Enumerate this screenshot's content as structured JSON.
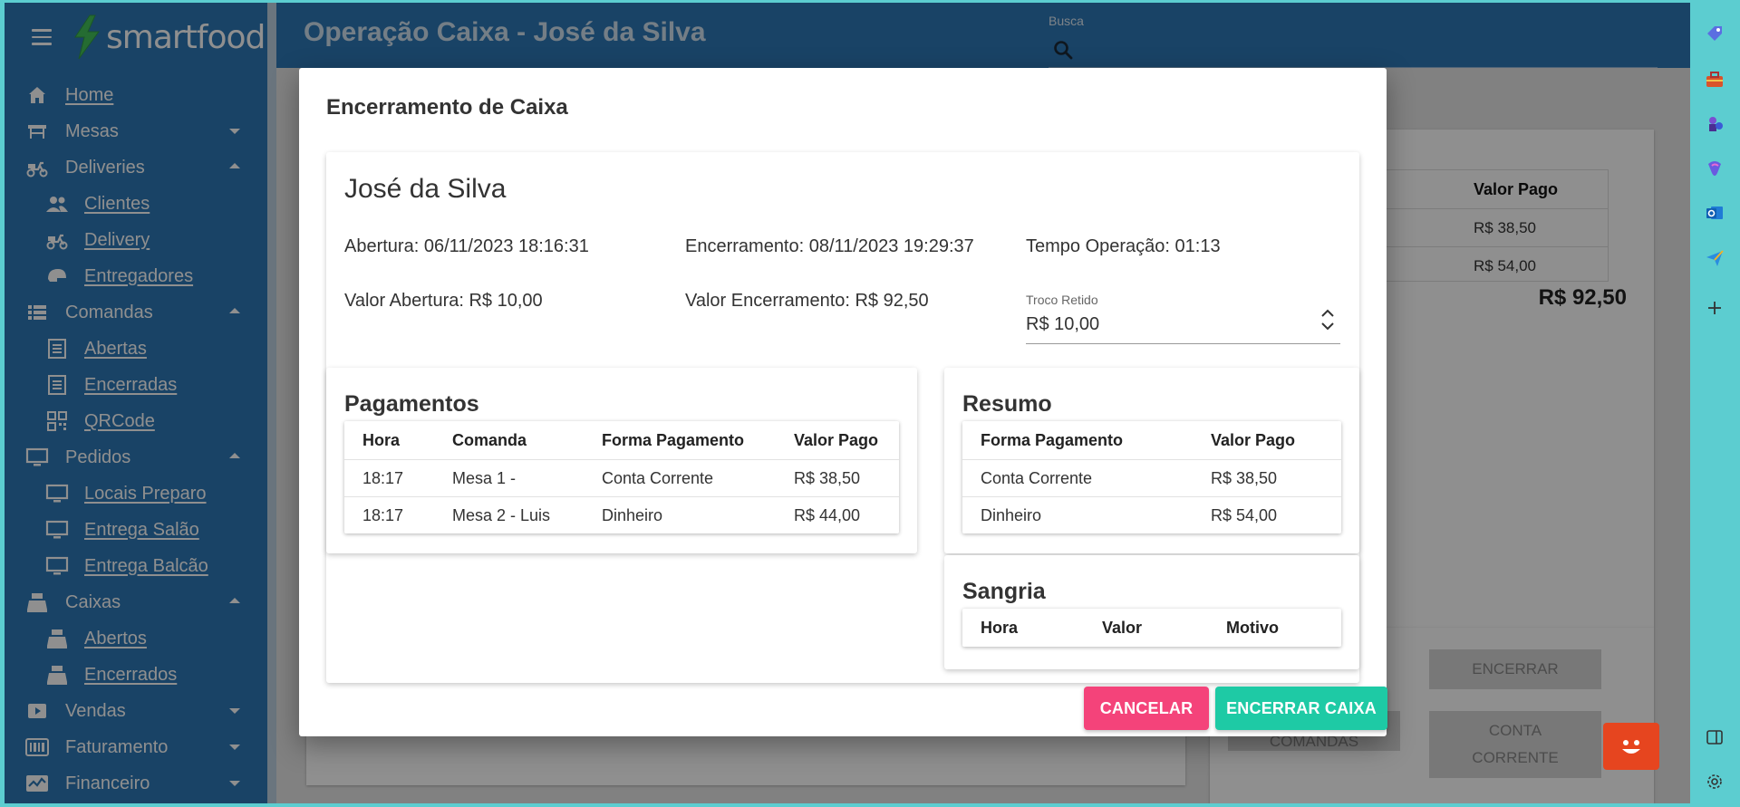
{
  "app": {
    "logo_text": "smartfood",
    "page_title": "Operação Caixa - José da Silva",
    "search_label": "Busca"
  },
  "sidebar": {
    "items": [
      {
        "label": "Home",
        "icon": "home-icon",
        "level": 0,
        "link": true
      },
      {
        "label": "Mesas",
        "icon": "table-icon",
        "level": 0,
        "caret": "down"
      },
      {
        "label": "Deliveries",
        "icon": "scooter-icon",
        "level": 0,
        "caret": "up"
      },
      {
        "label": "Clientes",
        "icon": "people-icon",
        "level": 1,
        "link": true
      },
      {
        "label": "Delivery",
        "icon": "scooter-icon",
        "level": 1,
        "link": true
      },
      {
        "label": "Entregadores",
        "icon": "helmet-icon",
        "level": 1,
        "link": true
      },
      {
        "label": "Comandas",
        "icon": "list-icon",
        "level": 0,
        "caret": "up"
      },
      {
        "label": "Abertas",
        "icon": "receipt-icon",
        "level": 1,
        "link": true
      },
      {
        "label": "Encerradas",
        "icon": "receipt-icon",
        "level": 1,
        "link": true
      },
      {
        "label": "QRCode",
        "icon": "qrcode-icon",
        "level": 1,
        "link": true
      },
      {
        "label": "Pedidos",
        "icon": "monitor-icon",
        "level": 0,
        "caret": "up"
      },
      {
        "label": "Locais Preparo",
        "icon": "monitor-icon",
        "level": 1,
        "link": true
      },
      {
        "label": "Entrega Salão",
        "icon": "monitor-icon",
        "level": 1,
        "link": true
      },
      {
        "label": "Entrega Balcão",
        "icon": "monitor-icon",
        "level": 1,
        "link": true
      },
      {
        "label": "Caixas",
        "icon": "cash-register-icon",
        "level": 0,
        "caret": "up"
      },
      {
        "label": "Abertos",
        "icon": "cash-register-icon",
        "level": 1,
        "link": true
      },
      {
        "label": "Encerrados",
        "icon": "cash-register-icon",
        "level": 1,
        "link": true
      },
      {
        "label": "Vendas",
        "icon": "play-icon",
        "level": 0,
        "caret": "down"
      },
      {
        "label": "Faturamento",
        "icon": "barcode-icon",
        "level": 0,
        "caret": "down"
      },
      {
        "label": "Financeiro",
        "icon": "chart-icon",
        "level": 0,
        "caret": "down"
      }
    ]
  },
  "background": {
    "table_header": "Valor Pago",
    "rows": [
      "R$ 38,50",
      "R$ 54,00"
    ],
    "total": "R$ 92,50",
    "btn_encerrar": "ENCERRAR",
    "btn_comandas": "COMANDAS",
    "btn_conta_corrente": "CONTA CORRENTE"
  },
  "modal": {
    "title": "Encerramento de Caixa",
    "operator_name": "José da Silva",
    "abertura": "Abertura: 06/11/2023 18:16:31",
    "encerramento": "Encerramento: 08/11/2023 19:29:37",
    "tempo_operacao": "Tempo Operação: 01:13",
    "valor_abertura": "Valor Abertura: R$ 10,00",
    "valor_encerramento": "Valor Encerramento: R$ 92,50",
    "troco": {
      "label": "Troco Retido",
      "value": "R$ 10,00"
    },
    "pagamentos": {
      "title": "Pagamentos",
      "columns": [
        "Hora",
        "Comanda",
        "Forma Pagamento",
        "Valor Pago"
      ],
      "rows": [
        [
          "18:17",
          "Mesa 1 -",
          "Conta Corrente",
          "R$ 38,50"
        ],
        [
          "18:17",
          "Mesa 2 - Luis",
          "Dinheiro",
          "R$ 44,00"
        ]
      ]
    },
    "resumo": {
      "title": "Resumo",
      "columns": [
        "Forma Pagamento",
        "Valor Pago"
      ],
      "rows": [
        [
          "Conta Corrente",
          "R$ 38,50"
        ],
        [
          "Dinheiro",
          "R$ 54,00"
        ]
      ]
    },
    "sangria": {
      "title": "Sangria",
      "columns": [
        "Hora",
        "Valor",
        "Motivo"
      ]
    },
    "cancel_label": "CANCELAR",
    "confirm_label": "ENCERRAR CAIXA"
  },
  "colors": {
    "sidebar": "#2d78b6",
    "cancel": "#f4437a",
    "confirm": "#1ecaa5",
    "fab": "#e6451f",
    "frame": "#5ccdd0"
  },
  "right_strip_icons": [
    "tag-icon",
    "toolbox-icon",
    "chess-icon",
    "copilot-icon",
    "outlook-icon",
    "send-icon",
    "add-icon",
    "sidebar-toggle-icon",
    "settings-icon"
  ]
}
